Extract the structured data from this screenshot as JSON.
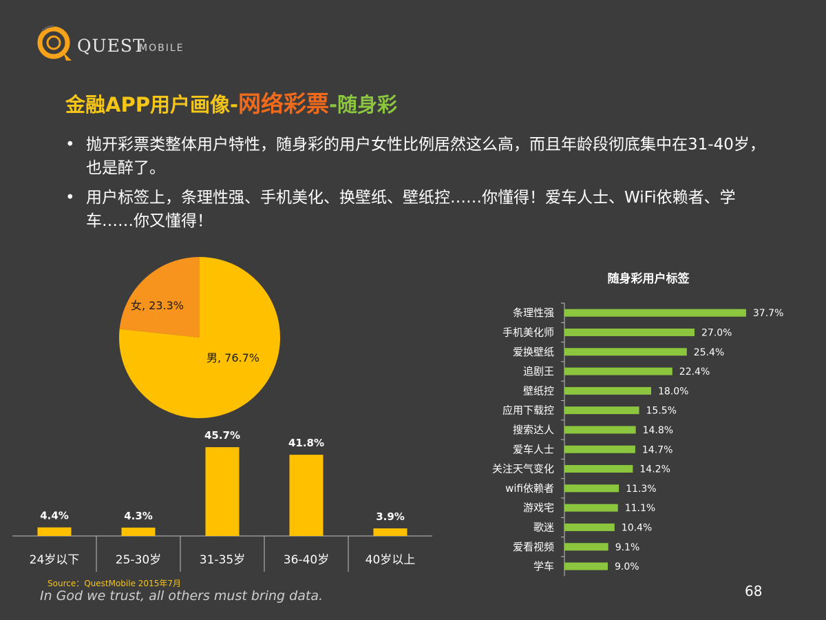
{
  "header": {
    "logo_name": "QUEST",
    "logo_sub": "MOBILE",
    "title_part1": "金融APP用户画像-",
    "title_part2": "网络彩票",
    "title_part3": "-随身彩"
  },
  "bullets": [
    {
      "symbol": "•",
      "text": "抛开彩票类整体用户特性，随身彩的用户女性比例居然这么高，而且年龄段彻底集中在31-40岁，也是醉了。"
    },
    {
      "symbol": "•",
      "text": "用户标签上，条理性强、手机美化、换壁纸、壁纸控……你懂得！爱车人士、WiFi依赖者、学车……你又懂得！"
    }
  ],
  "colors": {
    "accent_yellow": "#ffc000",
    "accent_orange": "#f7941d",
    "accent_green": "#8cc63f",
    "title_orange": "#f26b1d"
  },
  "chart_data": [
    {
      "type": "pie",
      "title": "",
      "slices": [
        {
          "label": "男",
          "value": 76.7,
          "display": "男, 76.7%"
        },
        {
          "label": "女",
          "value": 23.3,
          "display": "女, 23.3%"
        }
      ]
    },
    {
      "type": "bar",
      "title": "",
      "categories": [
        "24岁以下",
        "25-30岁",
        "31-35岁",
        "36-40岁",
        "40岁以上"
      ],
      "values": [
        4.4,
        4.3,
        45.7,
        41.8,
        3.9
      ],
      "labels": [
        "4.4%",
        "4.3%",
        "45.7%",
        "41.8%",
        "3.9%"
      ],
      "unit": "%",
      "ylim": [
        0,
        50
      ]
    },
    {
      "type": "bar",
      "orientation": "horizontal",
      "title": "随身彩用户标签",
      "categories": [
        "条理性强",
        "手机美化师",
        "爱换壁纸",
        "追剧王",
        "壁纸控",
        "应用下载控",
        "搜索达人",
        "爱车人士",
        "关注天气变化",
        "wifi依赖者",
        "游戏宅",
        "歌迷",
        "爱看视频",
        "学车"
      ],
      "values": [
        37.7,
        27.0,
        25.4,
        22.4,
        18.0,
        15.5,
        14.8,
        14.7,
        14.2,
        11.3,
        11.1,
        10.4,
        9.1,
        9.0
      ],
      "labels": [
        "37.7%",
        "27.0%",
        "25.4%",
        "22.4%",
        "18.0%",
        "15.5%",
        "14.8%",
        "14.7%",
        "14.2%",
        "11.3%",
        "11.1%",
        "10.4%",
        "9.1%",
        "9.0%"
      ],
      "unit": "%",
      "xlim": [
        0,
        40
      ]
    }
  ],
  "footer": {
    "source": "Source：QuestMobile   2015年7月",
    "slogan": "In God we trust, all others must bring data.",
    "page_number": "68"
  }
}
